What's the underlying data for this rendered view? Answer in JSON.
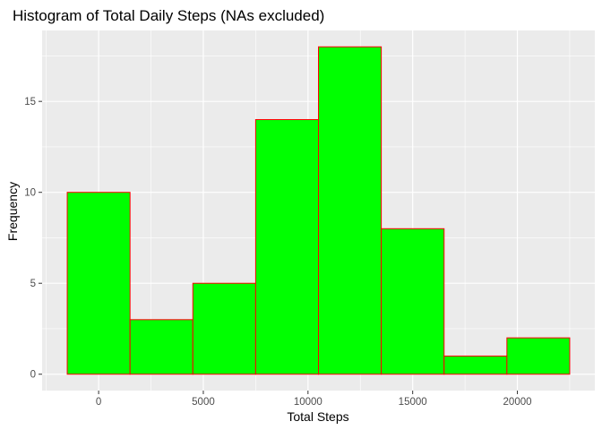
{
  "chart_data": {
    "type": "bar",
    "title": "Histogram of Total Daily Steps (NAs excluded)",
    "xlabel": "Total Steps",
    "ylabel": "Frequency",
    "bins": [
      {
        "start": -1500,
        "end": 1500,
        "count": 10
      },
      {
        "start": 1500,
        "end": 4500,
        "count": 3
      },
      {
        "start": 4500,
        "end": 7500,
        "count": 5
      },
      {
        "start": 7500,
        "end": 10500,
        "count": 14
      },
      {
        "start": 10500,
        "end": 13500,
        "count": 18
      },
      {
        "start": 13500,
        "end": 16500,
        "count": 8
      },
      {
        "start": 16500,
        "end": 19500,
        "count": 1
      },
      {
        "start": 19500,
        "end": 22500,
        "count": 2
      }
    ],
    "xlim": [
      -2700,
      23700
    ],
    "ylim": [
      -0.9,
      18.9
    ],
    "x_ticks": [
      0,
      5000,
      10000,
      15000,
      20000
    ],
    "x_tick_labels": [
      "0",
      "5000",
      "10000",
      "15000",
      "20000"
    ],
    "y_ticks": [
      0,
      5,
      10,
      15
    ],
    "y_tick_labels": [
      "0",
      "5",
      "10",
      "15"
    ],
    "grid": true,
    "colors": {
      "panel": "#ebebeb",
      "grid_major": "#ffffff",
      "bar_fill": "#00ff00",
      "bar_outline": "#ff0000",
      "tick": "#333333"
    }
  }
}
